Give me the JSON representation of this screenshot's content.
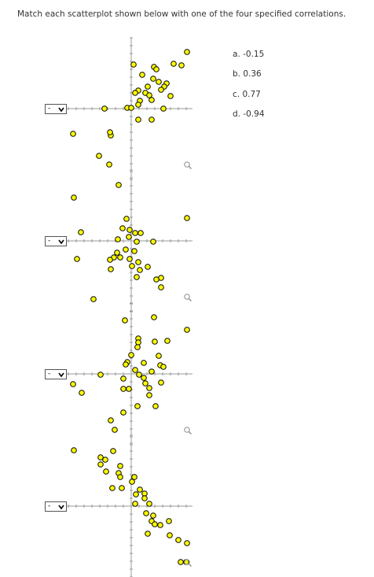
{
  "instruction": "Match each scatterplot shown below with one of the four specified correlations.",
  "plots": [
    {
      "selection": "-",
      "points": [
        [
          7.1,
          7.2
        ],
        [
          5.4,
          5.7
        ],
        [
          6.4,
          5.5
        ],
        [
          0.3,
          5.6
        ],
        [
          2.9,
          5.3
        ],
        [
          3.2,
          5.0
        ],
        [
          1.4,
          4.3
        ],
        [
          2.8,
          3.8
        ],
        [
          3.5,
          3.4
        ],
        [
          4.5,
          3.2
        ],
        [
          4.2,
          2.8
        ],
        [
          2.1,
          2.8
        ],
        [
          0.9,
          2.3
        ],
        [
          1.8,
          2.0
        ],
        [
          0.5,
          2.0
        ],
        [
          3.8,
          2.4
        ],
        [
          2.3,
          1.7
        ],
        [
          5.0,
          1.6
        ],
        [
          2.6,
          1.1
        ],
        [
          1.1,
          1.0
        ],
        [
          -0.5,
          0.1
        ],
        [
          0,
          0.1
        ],
        [
          0.9,
          0.5
        ],
        [
          4.1,
          0
        ],
        [
          -3.4,
          0
        ],
        [
          0.9,
          -1.4
        ],
        [
          2.6,
          -1.4
        ],
        [
          -7.4,
          -3.2
        ],
        [
          -2.6,
          -3.4
        ],
        [
          -2.7,
          -3.0
        ],
        [
          -4.1,
          -6.0
        ],
        [
          -2.8,
          -7.1
        ]
      ]
    },
    {
      "selection": "-",
      "points": [
        [
          -1.6,
          7.1
        ],
        [
          -7.3,
          5.5
        ],
        [
          7.1,
          2.9
        ],
        [
          -6.4,
          1.1
        ],
        [
          -0.6,
          2.8
        ],
        [
          -1.1,
          1.6
        ],
        [
          -0.2,
          1.4
        ],
        [
          0.5,
          1.0
        ],
        [
          1.2,
          1.0
        ],
        [
          -0.3,
          0.5
        ],
        [
          -1.7,
          0.2
        ],
        [
          0.7,
          -0.1
        ],
        [
          2.8,
          -0.1
        ],
        [
          -0.7,
          -1.1
        ],
        [
          0.4,
          -1.3
        ],
        [
          -1.8,
          -1.5
        ],
        [
          -2.2,
          -2.1
        ],
        [
          -2.7,
          -2.4
        ],
        [
          -1.4,
          -2.1
        ],
        [
          -0.2,
          -2.3
        ],
        [
          0.9,
          -2.7
        ],
        [
          -6.9,
          -2.3
        ],
        [
          2.1,
          -3.3
        ],
        [
          0.1,
          -3.2
        ],
        [
          -2.6,
          -3.6
        ],
        [
          1.1,
          -3.7
        ],
        [
          3.8,
          -4.7
        ],
        [
          3.2,
          -4.9
        ],
        [
          0.7,
          -4.6
        ],
        [
          3.8,
          -5.9
        ],
        [
          -4.8,
          -7.4
        ]
      ]
    },
    {
      "selection": "-",
      "points": [
        [
          -0.8,
          6.8
        ],
        [
          2.9,
          7.2
        ],
        [
          7.1,
          5.6
        ],
        [
          0.9,
          4.5
        ],
        [
          0.9,
          4.0
        ],
        [
          3.0,
          4.1
        ],
        [
          4.6,
          4.2
        ],
        [
          0.8,
          3.4
        ],
        [
          0,
          2.4
        ],
        [
          3.5,
          2.3
        ],
        [
          -0.5,
          1.5
        ],
        [
          1.6,
          1.4
        ],
        [
          -0.7,
          1.2
        ],
        [
          3.7,
          1.1
        ],
        [
          4.1,
          0.9
        ],
        [
          0.5,
          0.5
        ],
        [
          2.6,
          0.3
        ],
        [
          -3.9,
          -0.1
        ],
        [
          1.0,
          -0.1
        ],
        [
          1.6,
          -0.5
        ],
        [
          -1.0,
          -0.6
        ],
        [
          1.8,
          -1.2
        ],
        [
          3.8,
          -1.1
        ],
        [
          -7.4,
          -1.3
        ],
        [
          -0.3,
          -1.9
        ],
        [
          -1.0,
          -1.9
        ],
        [
          -6.3,
          -2.4
        ],
        [
          2.3,
          -1.8
        ],
        [
          2.3,
          -2.7
        ],
        [
          0.8,
          -4.1
        ],
        [
          3.1,
          -4.1
        ],
        [
          -1.0,
          -4.9
        ],
        [
          -2.6,
          -5.9
        ],
        [
          -2.1,
          -7.1
        ]
      ]
    },
    {
      "selection": "-",
      "points": [
        [
          -7.3,
          7.1
        ],
        [
          -2.3,
          7.0
        ],
        [
          -3.9,
          6.2
        ],
        [
          -3.3,
          5.9
        ],
        [
          -3.9,
          5.3
        ],
        [
          -1.4,
          5.1
        ],
        [
          -1.6,
          4.2
        ],
        [
          -3.2,
          4.4
        ],
        [
          -1.4,
          3.7
        ],
        [
          -2.4,
          2.3
        ],
        [
          -1.2,
          2.3
        ],
        [
          0.4,
          3.7
        ],
        [
          0.1,
          3.1
        ],
        [
          1.1,
          2.1
        ],
        [
          1.7,
          1.6
        ],
        [
          0.6,
          1.5
        ],
        [
          1.7,
          1.0
        ],
        [
          0.5,
          0.3
        ],
        [
          2.3,
          0.3
        ],
        [
          1.9,
          -0.9
        ],
        [
          2.8,
          -1.2
        ],
        [
          2.6,
          -1.9
        ],
        [
          3.0,
          -2.3
        ],
        [
          3.7,
          -2.4
        ],
        [
          4.8,
          -1.9
        ],
        [
          2.1,
          -3.5
        ],
        [
          4.9,
          -3.7
        ],
        [
          6.0,
          -4.3
        ],
        [
          7.1,
          -4.7
        ],
        [
          6.3,
          -7.1
        ],
        [
          7.0,
          -7.1
        ]
      ]
    }
  ],
  "options": [
    "a. -0.15",
    "b. 0.36",
    "c. 0.77",
    "d. -0.94"
  ]
}
